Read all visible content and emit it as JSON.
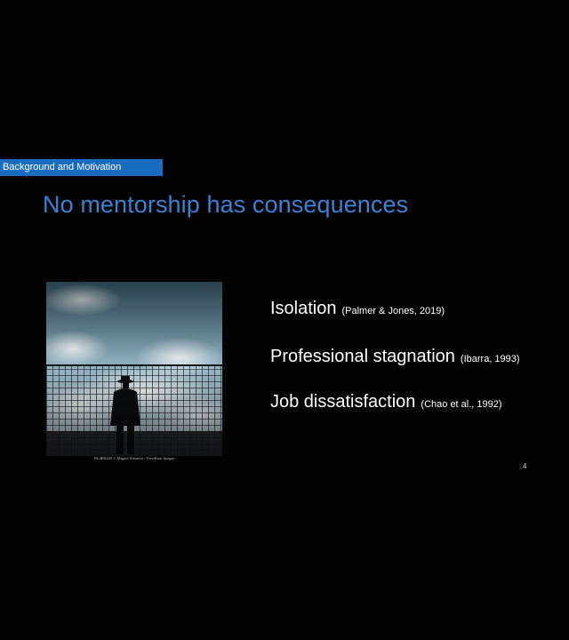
{
  "slide": {
    "section_label": "Background and Motivation",
    "title": "No mentorship has consequences",
    "photo_credit": "NL4R0248 © Miguel Sobreira / Trevillion Images",
    "bullets": [
      {
        "text": "Isolation",
        "citation": "(Palmer & Jones, 2019)"
      },
      {
        "text": "Professional stagnation",
        "citation": "(Ibarra, 1993)"
      },
      {
        "text": "Job dissatisfaction",
        "citation": "(Chao et al., 1992)"
      }
    ],
    "page_number": "4"
  },
  "colors": {
    "background": "#020202",
    "section_tag": "#1a6cc0",
    "title": "#3a82d6",
    "text": "#ffffff"
  }
}
